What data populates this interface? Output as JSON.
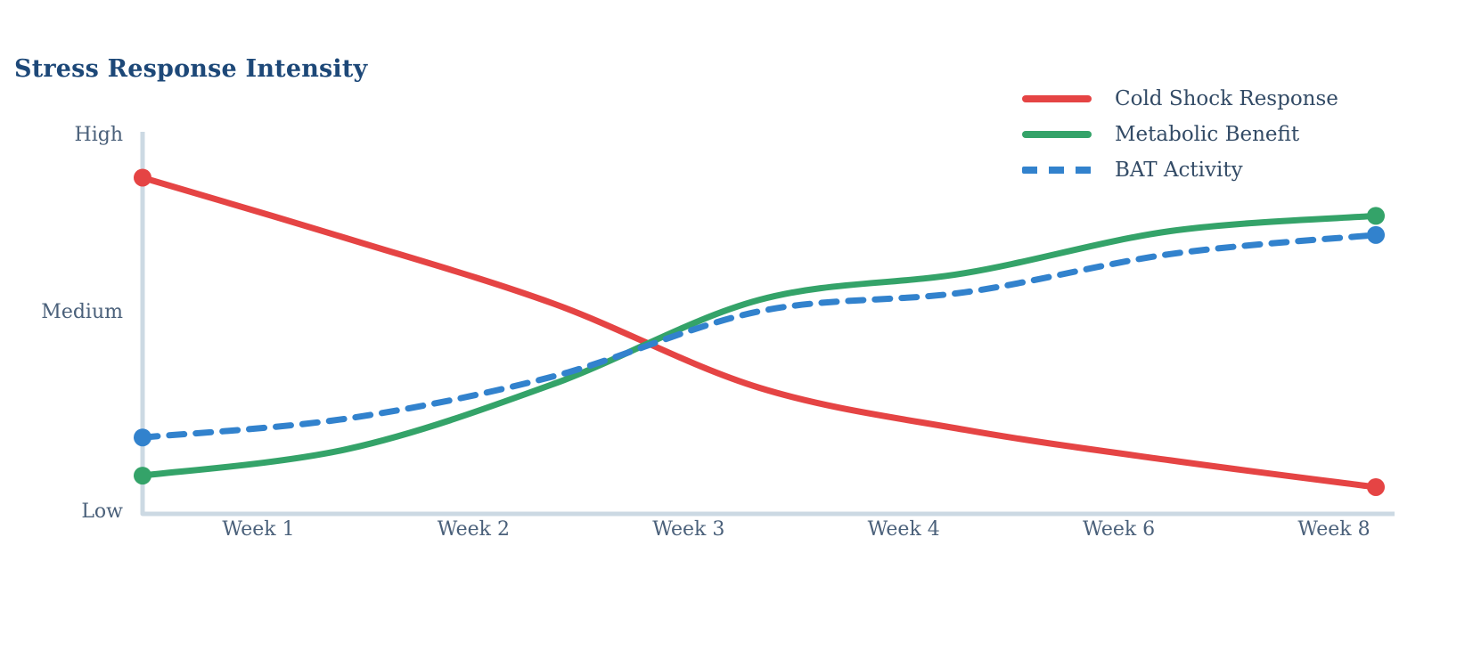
{
  "page": {
    "background": "#ffffff"
  },
  "chart": {
    "title": "Stress Response Intensity"
  },
  "chart_data": {
    "type": "line",
    "title": "Stress Response Intensity",
    "categories": [
      "",
      "Week 1",
      "Week 2",
      "Week 3",
      "Week 4",
      "Week 6",
      "Week 8"
    ],
    "x_tick_labels": [
      "Week 1",
      "Week 2",
      "Week 3",
      "Week 4",
      "Week 6",
      "Week 8"
    ],
    "y_tick_labels": [
      "High",
      "Medium",
      "Low"
    ],
    "y_axis": "qualitative intensity scale: Low (bottom) to High (top)",
    "ylim": [
      0,
      100
    ],
    "grid": false,
    "legend_position": "top-right",
    "marker_style": "circle markers on first and last points only",
    "series": [
      {
        "name": "Cold Shock Response",
        "color": "#e54444",
        "line_style": "solid",
        "values": [
          88,
          72,
          55,
          33,
          22,
          14,
          7
        ]
      },
      {
        "name": "Metabolic Benefit",
        "color": "#34a369",
        "line_style": "solid",
        "values": [
          10,
          17,
          34,
          56,
          63,
          74,
          78
        ]
      },
      {
        "name": "BAT Activity",
        "color": "#3282cd",
        "line_style": "dashed",
        "values": [
          20,
          25,
          36,
          53,
          58,
          68,
          73
        ]
      }
    ],
    "colors": {
      "axis": "#ccd9e3",
      "title": "#1d4878",
      "tick_labels": "#4a607a",
      "legend_text": "#334b66"
    }
  }
}
